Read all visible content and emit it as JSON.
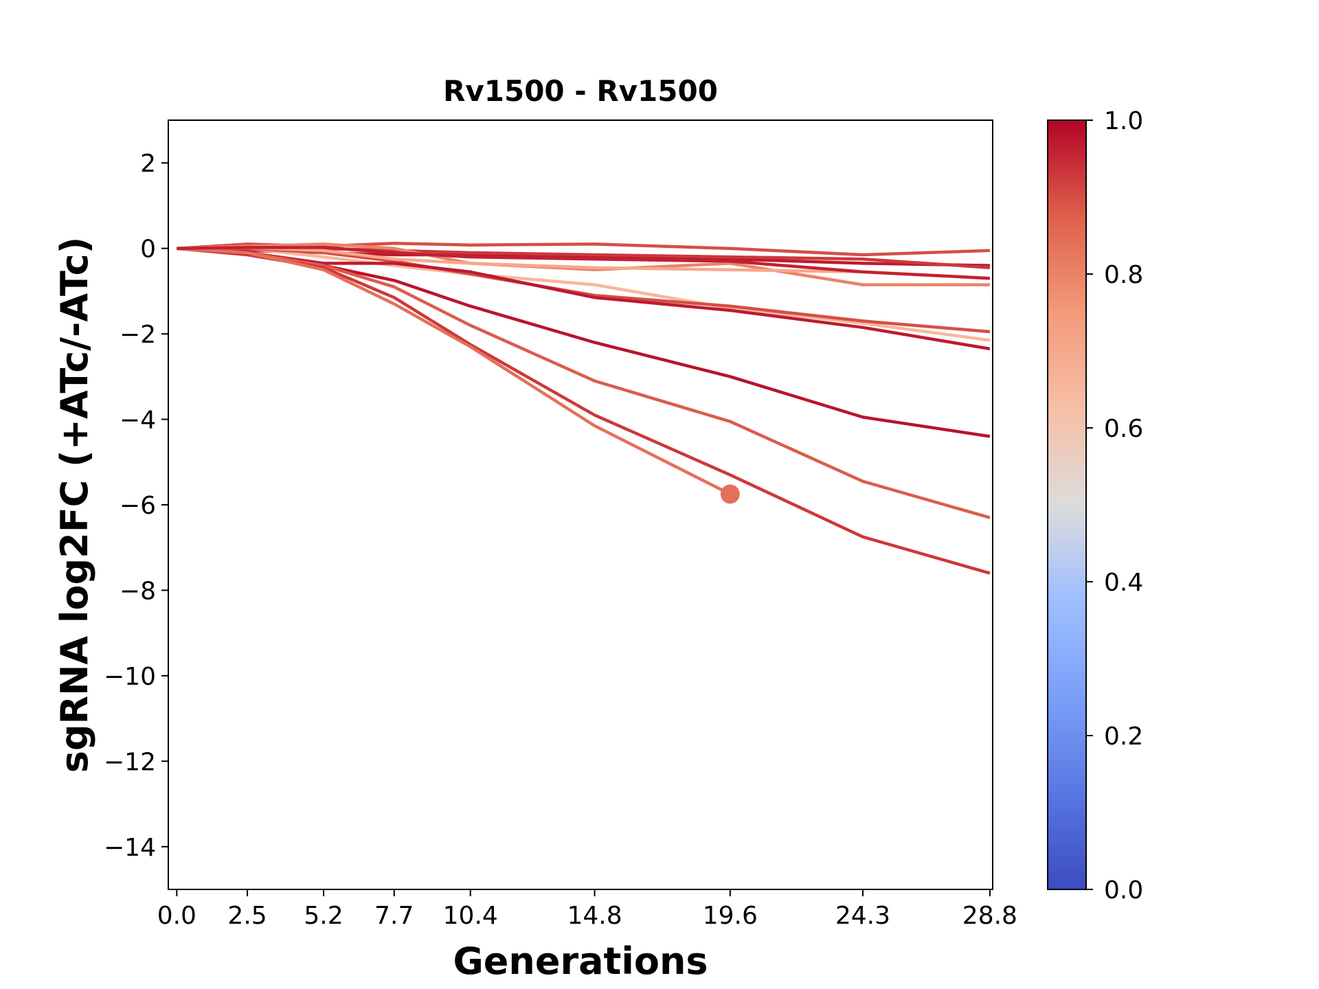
{
  "chart_data": {
    "type": "line",
    "title": "Rv1500 - Rv1500",
    "xlabel": "Generations",
    "ylabel": "sgRNA log2FC (+ATc/-ATc)",
    "x": [
      0.0,
      2.5,
      5.2,
      7.7,
      10.4,
      14.8,
      19.6,
      24.3,
      28.8
    ],
    "x_tick_labels": [
      "0.0",
      "2.5",
      "5.2",
      "7.7",
      "10.4",
      "14.8",
      "19.6",
      "24.3",
      "28.8"
    ],
    "xlim": [
      -0.3,
      28.9
    ],
    "ylim": [
      -15,
      3
    ],
    "y_ticks": [
      2,
      0,
      -2,
      -4,
      -6,
      -8,
      -10,
      -12,
      -14
    ],
    "y_tick_labels": [
      "2",
      "0",
      "−2",
      "−4",
      "−6",
      "−8",
      "−10",
      "−12",
      "−14"
    ],
    "colorbar": {
      "colormap": "coolwarm",
      "range": [
        0,
        1
      ],
      "ticks": [
        0.0,
        0.2,
        0.4,
        0.6,
        0.8,
        1.0
      ],
      "tick_labels": [
        "0.0",
        "0.2",
        "0.4",
        "0.6",
        "0.8",
        "1.0"
      ]
    },
    "grid": false,
    "series": [
      {
        "color_value": 0.9,
        "values": [
          0.0,
          0.1,
          0.05,
          0.12,
          0.08,
          0.1,
          0.0,
          -0.15,
          -0.05
        ]
      },
      {
        "color_value": 0.97,
        "values": [
          0.0,
          -0.05,
          -0.1,
          -0.15,
          -0.15,
          -0.2,
          -0.25,
          -0.35,
          -0.4
        ]
      },
      {
        "color_value": 0.93,
        "values": [
          0.0,
          0.05,
          0.0,
          -0.05,
          -0.1,
          -0.15,
          -0.2,
          -0.25,
          -0.45
        ]
      },
      {
        "color_value": 0.8,
        "values": [
          0.0,
          0.05,
          0.1,
          0.0,
          -0.35,
          -0.5,
          -0.35,
          -0.85,
          -0.85
        ]
      },
      {
        "color_value": 0.65,
        "values": [
          0.0,
          0.0,
          -0.2,
          -0.4,
          -0.6,
          -0.85,
          -1.4,
          -1.75,
          -2.15
        ]
      },
      {
        "color_value": 0.9,
        "values": [
          0.0,
          0.0,
          -0.1,
          -0.3,
          -0.6,
          -1.1,
          -1.35,
          -1.7,
          -1.95
        ]
      },
      {
        "color_value": 0.97,
        "values": [
          0.0,
          -0.1,
          -0.35,
          -0.35,
          -0.55,
          -1.15,
          -1.45,
          -1.85,
          -2.35
        ]
      },
      {
        "color_value": 0.98,
        "values": [
          0.0,
          -0.1,
          -0.4,
          -0.75,
          -1.35,
          -2.2,
          -3.0,
          -3.95,
          -4.4
        ]
      },
      {
        "color_value": 0.88,
        "values": [
          0.0,
          -0.1,
          -0.4,
          -0.9,
          -1.8,
          -3.1,
          -4.05,
          -5.45,
          -6.3
        ]
      },
      {
        "color_value": 0.93,
        "values": [
          0.0,
          -0.15,
          -0.45,
          -1.15,
          -2.25,
          -3.9,
          -5.3,
          -6.75,
          -7.6
        ]
      },
      {
        "color_value": 0.84,
        "values": [
          0.0,
          -0.1,
          -0.5,
          -1.3,
          -2.3,
          -4.15,
          -5.75,
          null,
          null
        ],
        "end_marker": true
      },
      {
        "color_value": 0.7,
        "values": [
          0.0,
          0.02,
          -0.05,
          -0.25,
          -0.35,
          -0.45,
          -0.5,
          -0.55,
          -0.7
        ]
      },
      {
        "color_value": 0.96,
        "values": [
          0.0,
          0.02,
          0.02,
          -0.1,
          -0.2,
          -0.25,
          -0.3,
          -0.55,
          -0.7
        ]
      }
    ]
  }
}
